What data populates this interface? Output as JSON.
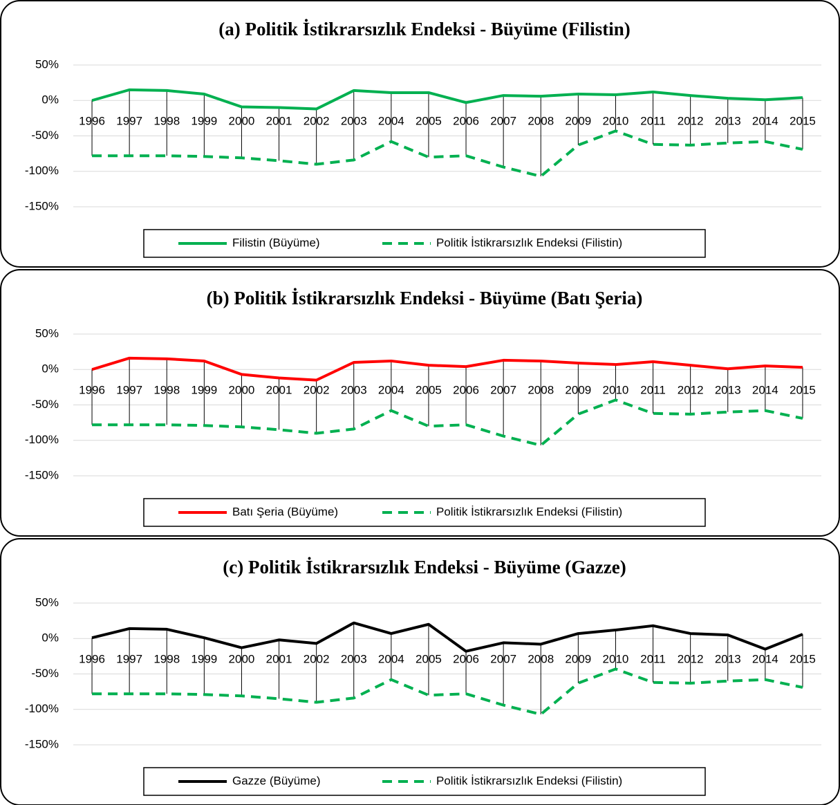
{
  "chart_data": [
    {
      "type": "line",
      "title": "(a) Politik İstikrarsızlık Endeksi - Büyüme (Filistin)",
      "categories": [
        "1996",
        "1997",
        "1998",
        "1999",
        "2000",
        "2001",
        "2002",
        "2003",
        "2004",
        "2005",
        "2006",
        "2007",
        "2008",
        "2009",
        "2010",
        "2011",
        "2012",
        "2013",
        "2014",
        "2015"
      ],
      "series": [
        {
          "name": "Filistin (Büyüme)",
          "color": "#00b050",
          "dashed": false,
          "values": [
            0,
            15,
            14,
            9,
            -9,
            -10,
            -12,
            14,
            11,
            11,
            -3,
            7,
            6,
            9,
            8,
            12,
            7,
            3,
            1,
            4
          ]
        },
        {
          "name": "Politik İstikrarsızlık Endeksi (Filistin)",
          "color": "#00b050",
          "dashed": true,
          "values": [
            -78,
            -78,
            -78,
            -79,
            -81,
            -85,
            -90,
            -84,
            -58,
            -80,
            -78,
            -94,
            -107,
            -63,
            -43,
            -62,
            -63,
            -60,
            -58,
            -69
          ]
        }
      ],
      "ylim": [
        -150,
        50
      ],
      "yticks": [
        {
          "value": 50,
          "label": "50%"
        },
        {
          "value": 0,
          "label": "0%"
        },
        {
          "value": -50,
          "label": "-50%"
        },
        {
          "value": -100,
          "label": "-100%"
        },
        {
          "value": -150,
          "label": "-150%"
        }
      ],
      "grid": true,
      "drop_lines": true,
      "legend": "bottom"
    },
    {
      "type": "line",
      "title": "(b) Politik İstikrarsızlık Endeksi - Büyüme (Batı Şeria)",
      "categories": [
        "1996",
        "1997",
        "1998",
        "1999",
        "2000",
        "2001",
        "2002",
        "2003",
        "2004",
        "2005",
        "2006",
        "2007",
        "2008",
        "2009",
        "2010",
        "2011",
        "2012",
        "2013",
        "2014",
        "2015"
      ],
      "series": [
        {
          "name": "Batı Şeria (Büyüme)",
          "color": "#ff0000",
          "dashed": false,
          "values": [
            0,
            16,
            15,
            12,
            -7,
            -12,
            -15,
            10,
            12,
            6,
            4,
            13,
            12,
            9,
            7,
            11,
            6,
            1,
            5,
            3
          ]
        },
        {
          "name": "Politik İstikrarsızlık Endeksi (Filistin)",
          "color": "#00b050",
          "dashed": true,
          "values": [
            -78,
            -78,
            -78,
            -79,
            -81,
            -85,
            -90,
            -84,
            -58,
            -80,
            -78,
            -94,
            -107,
            -63,
            -43,
            -62,
            -63,
            -60,
            -58,
            -69
          ]
        }
      ],
      "ylim": [
        -150,
        50
      ],
      "yticks": [
        {
          "value": 50,
          "label": "50%"
        },
        {
          "value": 0,
          "label": "0%"
        },
        {
          "value": -50,
          "label": "-50%"
        },
        {
          "value": -100,
          "label": "-100%"
        },
        {
          "value": -150,
          "label": "-150%"
        }
      ],
      "grid": true,
      "drop_lines": true,
      "legend": "bottom"
    },
    {
      "type": "line",
      "title": "(c) Politik İstikrarsızlık Endeksi - Büyüme (Gazze)",
      "categories": [
        "1996",
        "1997",
        "1998",
        "1999",
        "2000",
        "2001",
        "2002",
        "2003",
        "2004",
        "2005",
        "2006",
        "2007",
        "2008",
        "2009",
        "2010",
        "2011",
        "2012",
        "2013",
        "2014",
        "2015"
      ],
      "series": [
        {
          "name": "Gazze (Büyüme)",
          "color": "#000000",
          "dashed": false,
          "values": [
            1,
            14,
            13,
            1,
            -13,
            -2,
            -7,
            22,
            7,
            20,
            -18,
            -6,
            -8,
            7,
            12,
            18,
            7,
            5,
            -15,
            6
          ]
        },
        {
          "name": "Politik İstikrarsızlık Endeksi (Filistin)",
          "color": "#00b050",
          "dashed": true,
          "values": [
            -78,
            -78,
            -78,
            -79,
            -81,
            -85,
            -90,
            -84,
            -58,
            -80,
            -78,
            -94,
            -107,
            -63,
            -43,
            -62,
            -63,
            -60,
            -58,
            -69
          ]
        }
      ],
      "ylim": [
        -150,
        50
      ],
      "yticks": [
        {
          "value": 50,
          "label": "50%"
        },
        {
          "value": 0,
          "label": "0%"
        },
        {
          "value": -50,
          "label": "-50%"
        },
        {
          "value": -100,
          "label": "-100%"
        },
        {
          "value": -150,
          "label": "-150%"
        }
      ],
      "grid": true,
      "drop_lines": true,
      "legend": "bottom"
    }
  ]
}
